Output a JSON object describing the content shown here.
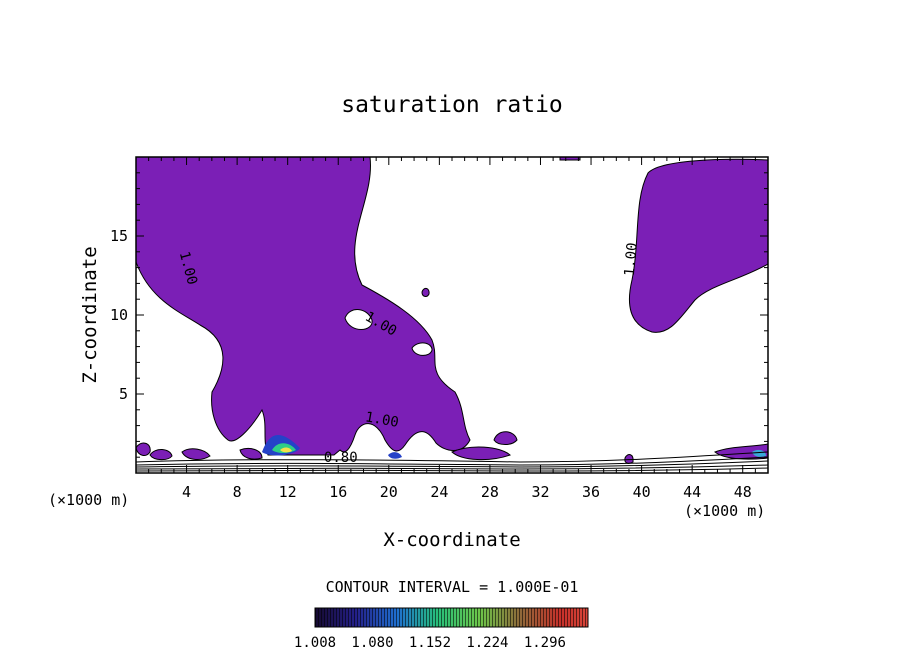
{
  "chart_data": {
    "type": "contour",
    "title": "saturation ratio",
    "xlabel": "X-coordinate",
    "ylabel": "Z-coordinate",
    "x_unit": "(×1000 m)",
    "xlim": [
      0,
      50
    ],
    "ylim": [
      0,
      20
    ],
    "x_ticks": [
      4,
      8,
      12,
      16,
      20,
      24,
      28,
      32,
      36,
      40,
      44,
      48
    ],
    "y_ticks": [
      5,
      10,
      15
    ],
    "contour_labels": [
      {
        "text": "1.00",
        "x": 3.8,
        "z": 12.9
      },
      {
        "text": "1.00",
        "x": 19.2,
        "z": 9.2
      },
      {
        "text": "1.00",
        "x": 19.4,
        "z": 3.1
      },
      {
        "text": "1.00",
        "x": 39.5,
        "z": 13.5
      },
      {
        "text": "0.80",
        "x": 16.2,
        "z": 0.7
      }
    ],
    "contour_interval_text": "CONTOUR INTERVAL = 1.000E-01",
    "colorbar": {
      "labels": [
        "1.008",
        "1.080",
        "1.152",
        "1.224",
        "1.296"
      ],
      "min": 1.008,
      "max": 1.35
    },
    "colors": {
      "fill": "#7a1fb5",
      "cbar_low": "#1a0b3a",
      "cbar_mid": "#2ecc5a",
      "cbar_high": "#cc2b1e"
    }
  }
}
